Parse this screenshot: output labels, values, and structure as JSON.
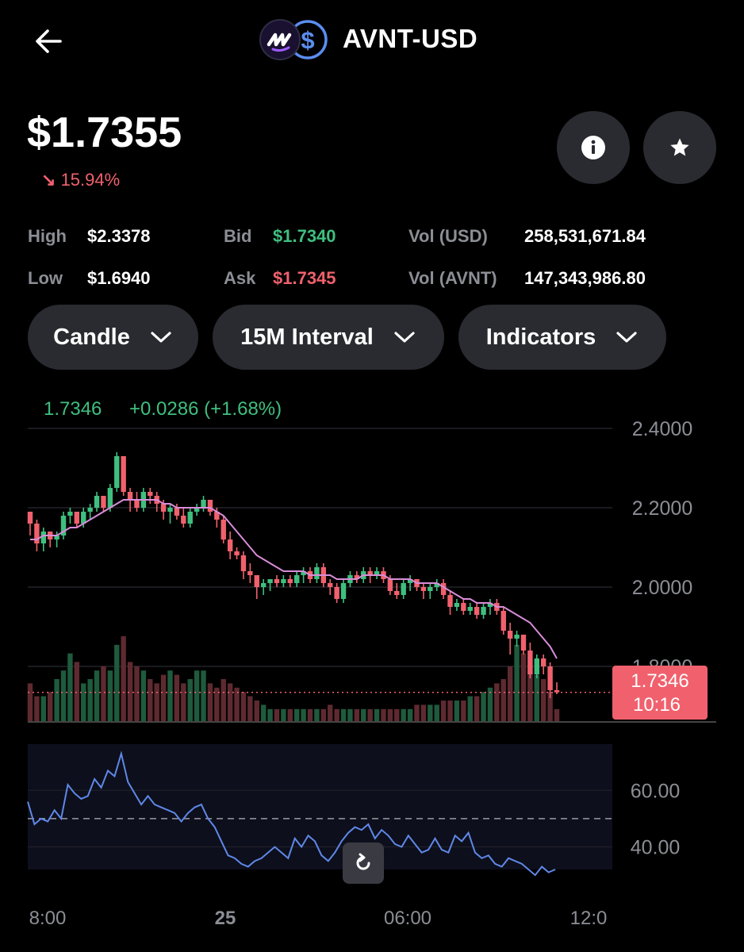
{
  "header": {
    "back_icon": "arrow-left-icon",
    "pair_title": "AVNT-USD",
    "base_icon": "avantis-logo-icon",
    "quote_icon": "usd-coin-icon"
  },
  "price": {
    "current": "$1.7355",
    "change": "15.94%",
    "direction_icon": "arrow-down-right-icon"
  },
  "actions": {
    "info_icon": "info-icon",
    "favorite_icon": "star-icon"
  },
  "stats": {
    "high_label": "High",
    "high_value": "$2.3378",
    "low_label": "Low",
    "low_value": "$1.6940",
    "bid_label": "Bid",
    "bid_value": "$1.7340",
    "ask_label": "Ask",
    "ask_value": "$1.7345",
    "vol_usd_label": "Vol (USD)",
    "vol_usd_value": "258,531,671.84",
    "vol_base_label": "Vol (AVNT)",
    "vol_base_value": "147,343,986.80"
  },
  "controls": {
    "chart_type": "Candle",
    "interval": "15M Interval",
    "indicators": "Indicators"
  },
  "chart_header": {
    "last": "1.7346",
    "delta": "+0.0286 (+1.68%)"
  },
  "price_tag": {
    "value": "1.7346",
    "countdown": "10:16"
  },
  "reset_icon": "reset-zoom-icon",
  "colors": {
    "up": "#3fbf7f",
    "down": "#f0616d",
    "ma_line": "#d98cd9",
    "rsi_line": "#5f88e8",
    "background": "#000000",
    "pill": "#2a2b30"
  },
  "chart_data": [
    {
      "type": "candlestick",
      "title": "",
      "y_ticks": [
        "2.4000",
        "2.2000",
        "2.0000",
        "1.8000"
      ],
      "ylim": [
        1.66,
        2.42
      ],
      "x_ticks": [
        "8:00",
        "25",
        "06:00",
        "12:0"
      ],
      "grid": true,
      "last_price": 1.7346,
      "candles": [
        [
          2.19,
          2.19,
          2.13,
          2.16
        ],
        [
          2.16,
          2.17,
          2.09,
          2.11
        ],
        [
          2.11,
          2.15,
          2.09,
          2.14
        ],
        [
          2.14,
          2.14,
          2.1,
          2.12
        ],
        [
          2.12,
          2.14,
          2.1,
          2.13
        ],
        [
          2.13,
          2.19,
          2.12,
          2.18
        ],
        [
          2.18,
          2.2,
          2.16,
          2.19
        ],
        [
          2.19,
          2.19,
          2.15,
          2.16
        ],
        [
          2.16,
          2.2,
          2.15,
          2.19
        ],
        [
          2.19,
          2.21,
          2.17,
          2.2
        ],
        [
          2.2,
          2.24,
          2.19,
          2.23
        ],
        [
          2.23,
          2.23,
          2.19,
          2.2
        ],
        [
          2.2,
          2.26,
          2.19,
          2.25
        ],
        [
          2.25,
          2.34,
          2.24,
          2.33
        ],
        [
          2.33,
          2.33,
          2.23,
          2.24
        ],
        [
          2.24,
          2.25,
          2.19,
          2.22
        ],
        [
          2.22,
          2.24,
          2.19,
          2.2
        ],
        [
          2.2,
          2.25,
          2.19,
          2.24
        ],
        [
          2.24,
          2.25,
          2.21,
          2.23
        ],
        [
          2.23,
          2.24,
          2.19,
          2.21
        ],
        [
          2.21,
          2.22,
          2.17,
          2.19
        ],
        [
          2.19,
          2.21,
          2.16,
          2.2
        ],
        [
          2.2,
          2.21,
          2.17,
          2.18
        ],
        [
          2.18,
          2.2,
          2.15,
          2.16
        ],
        [
          2.16,
          2.2,
          2.15,
          2.19
        ],
        [
          2.19,
          2.21,
          2.18,
          2.2
        ],
        [
          2.2,
          2.23,
          2.19,
          2.22
        ],
        [
          2.22,
          2.22,
          2.18,
          2.19
        ],
        [
          2.19,
          2.2,
          2.15,
          2.17
        ],
        [
          2.17,
          2.18,
          2.11,
          2.12
        ],
        [
          2.12,
          2.14,
          2.07,
          2.09
        ],
        [
          2.09,
          2.1,
          2.07,
          2.08
        ],
        [
          2.08,
          2.09,
          2.02,
          2.04
        ],
        [
          2.04,
          2.06,
          2.01,
          2.03
        ],
        [
          2.03,
          2.03,
          1.97,
          2.0
        ],
        [
          2.0,
          2.02,
          1.98,
          2.01
        ],
        [
          2.01,
          2.02,
          1.99,
          2.02
        ],
        [
          2.02,
          2.03,
          2.0,
          2.01
        ],
        [
          2.01,
          2.03,
          2.0,
          2.02
        ],
        [
          2.02,
          2.03,
          2.0,
          2.01
        ],
        [
          2.01,
          2.04,
          2.0,
          2.03
        ],
        [
          2.03,
          2.05,
          2.01,
          2.04
        ],
        [
          2.04,
          2.05,
          2.01,
          2.02
        ],
        [
          2.02,
          2.06,
          2.01,
          2.05
        ],
        [
          2.05,
          2.06,
          2.0,
          2.01
        ],
        [
          2.01,
          2.02,
          1.98,
          2.0
        ],
        [
          2.0,
          2.01,
          1.96,
          1.97
        ],
        [
          1.97,
          2.02,
          1.96,
          2.01
        ],
        [
          2.01,
          2.04,
          2.0,
          2.03
        ],
        [
          2.03,
          2.04,
          2.01,
          2.02
        ],
        [
          2.02,
          2.05,
          2.01,
          2.04
        ],
        [
          2.04,
          2.05,
          2.01,
          2.03
        ],
        [
          2.03,
          2.05,
          2.02,
          2.04
        ],
        [
          2.04,
          2.05,
          2.01,
          2.02
        ],
        [
          2.02,
          2.03,
          1.98,
          1.99
        ],
        [
          1.99,
          2.01,
          1.97,
          1.98
        ],
        [
          1.98,
          2.02,
          1.97,
          2.01
        ],
        [
          2.01,
          2.03,
          1.99,
          2.02
        ],
        [
          2.02,
          2.02,
          1.99,
          2.0
        ],
        [
          2.0,
          2.01,
          1.97,
          1.99
        ],
        [
          1.99,
          2.01,
          1.97,
          2.0
        ],
        [
          2.0,
          2.02,
          1.99,
          2.01
        ],
        [
          2.01,
          2.02,
          1.97,
          1.98
        ],
        [
          1.98,
          1.99,
          1.93,
          1.95
        ],
        [
          1.95,
          1.97,
          1.94,
          1.96
        ],
        [
          1.96,
          1.97,
          1.93,
          1.94
        ],
        [
          1.94,
          1.96,
          1.93,
          1.95
        ],
        [
          1.95,
          1.96,
          1.92,
          1.93
        ],
        [
          1.93,
          1.96,
          1.92,
          1.95
        ],
        [
          1.95,
          1.97,
          1.93,
          1.96
        ],
        [
          1.96,
          1.97,
          1.93,
          1.94
        ],
        [
          1.94,
          1.95,
          1.88,
          1.89
        ],
        [
          1.89,
          1.91,
          1.83,
          1.87
        ],
        [
          1.87,
          1.89,
          1.85,
          1.88
        ],
        [
          1.88,
          1.88,
          1.83,
          1.84
        ],
        [
          1.84,
          1.86,
          1.77,
          1.78
        ],
        [
          1.78,
          1.83,
          1.77,
          1.82
        ],
        [
          1.82,
          1.83,
          1.78,
          1.8
        ],
        [
          1.8,
          1.81,
          1.72,
          1.74
        ],
        [
          1.74,
          1.76,
          1.73,
          1.7346
        ]
      ],
      "ma_line": [
        2.12,
        2.12,
        2.13,
        2.13,
        2.13,
        2.14,
        2.15,
        2.15,
        2.16,
        2.17,
        2.18,
        2.19,
        2.2,
        2.21,
        2.22,
        2.22,
        2.22,
        2.22,
        2.22,
        2.22,
        2.21,
        2.21,
        2.2,
        2.2,
        2.2,
        2.2,
        2.2,
        2.2,
        2.19,
        2.18,
        2.16,
        2.14,
        2.12,
        2.1,
        2.08,
        2.07,
        2.06,
        2.05,
        2.04,
        2.04,
        2.04,
        2.04,
        2.03,
        2.03,
        2.03,
        2.03,
        2.02,
        2.02,
        2.02,
        2.02,
        2.03,
        2.03,
        2.03,
        2.03,
        2.02,
        2.02,
        2.02,
        2.02,
        2.01,
        2.01,
        2.01,
        2.01,
        2.0,
        1.99,
        1.98,
        1.97,
        1.97,
        1.96,
        1.96,
        1.96,
        1.95,
        1.95,
        1.94,
        1.93,
        1.92,
        1.91,
        1.89,
        1.87,
        1.85,
        1.82
      ],
      "volume": [
        9,
        6,
        6,
        7,
        10,
        12,
        16,
        14,
        9,
        10,
        12,
        13,
        12,
        18,
        20,
        14,
        13,
        12,
        10,
        9,
        11,
        12,
        11,
        9,
        10,
        12,
        12,
        9,
        8,
        10,
        9,
        8,
        7,
        6,
        5,
        4,
        3,
        3,
        3,
        3,
        3,
        3,
        3,
        3,
        3,
        4,
        3,
        3,
        3,
        3,
        3,
        3,
        3,
        3,
        3,
        3,
        3,
        3,
        4,
        4,
        4,
        4,
        5,
        5,
        5,
        5,
        6,
        6,
        7,
        8,
        9,
        10,
        13,
        18,
        16,
        14,
        11,
        10,
        7,
        3
      ]
    },
    {
      "type": "line",
      "title": "",
      "y_ticks": [
        "60.00",
        "40.00"
      ],
      "ylim": [
        32,
        73
      ],
      "reference_line": 50,
      "values": [
        56,
        48,
        50,
        49,
        53,
        50,
        62,
        59,
        57,
        58,
        64,
        61,
        67,
        65,
        73,
        63,
        59,
        55,
        58,
        55,
        54,
        53,
        52,
        49,
        52,
        54,
        55,
        50,
        47,
        42,
        37,
        36,
        34,
        33,
        35,
        36,
        38,
        40,
        38,
        36,
        43,
        40,
        44,
        42,
        37,
        35,
        38,
        42,
        45,
        47,
        46,
        48,
        43,
        46,
        44,
        41,
        40,
        44,
        41,
        38,
        39,
        43,
        39,
        38,
        44,
        42,
        45,
        38,
        36,
        37,
        34,
        33,
        36,
        35,
        34,
        32,
        30,
        33,
        31,
        32
      ]
    }
  ]
}
